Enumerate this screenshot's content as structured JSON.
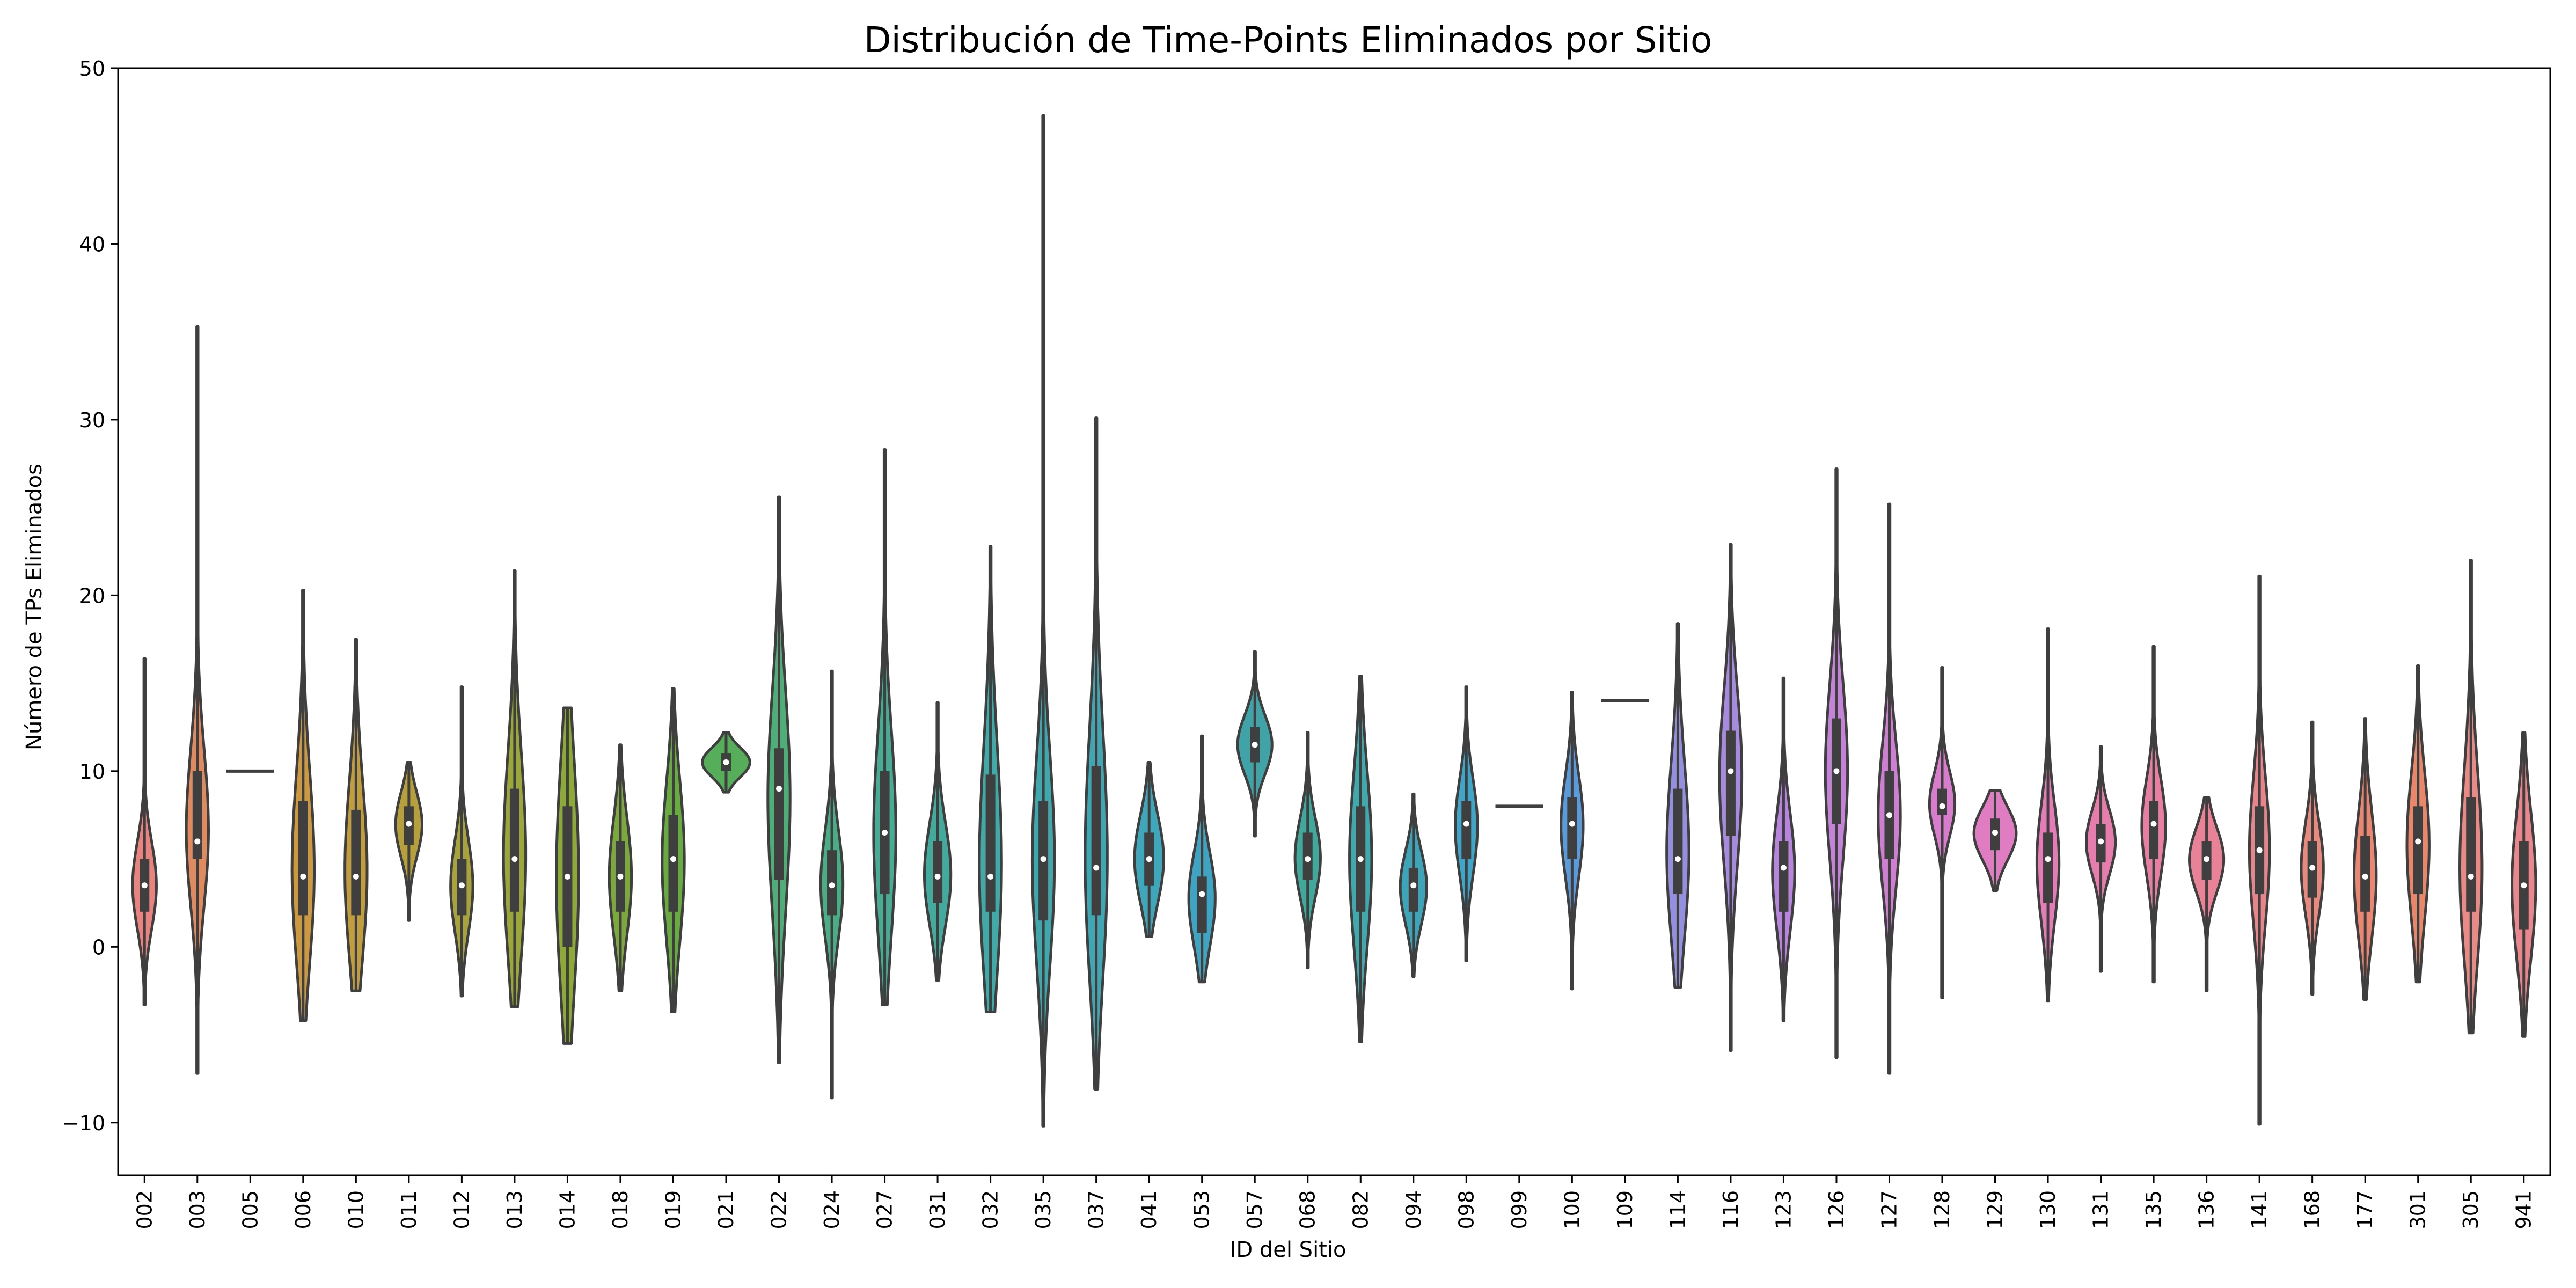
{
  "chart_data": {
    "type": "violin",
    "title": "Distribución de Time-Points Eliminados por Sitio",
    "xlabel": "ID del Sitio",
    "ylabel": "Número de TPs Eliminados",
    "ylim": [
      -13,
      50
    ],
    "yticks": [
      -10,
      0,
      10,
      20,
      30,
      40,
      50
    ],
    "ytick_labels": [
      "−10",
      "0",
      "10",
      "20",
      "30",
      "40",
      "50"
    ],
    "grid": false,
    "legend": "none",
    "categories": [
      "002",
      "003",
      "005",
      "006",
      "010",
      "011",
      "012",
      "013",
      "014",
      "018",
      "019",
      "021",
      "022",
      "024",
      "027",
      "031",
      "032",
      "035",
      "037",
      "041",
      "053",
      "057",
      "068",
      "082",
      "094",
      "098",
      "099",
      "100",
      "109",
      "114",
      "116",
      "123",
      "126",
      "127",
      "128",
      "129",
      "130",
      "131",
      "135",
      "136",
      "141",
      "168",
      "177",
      "301",
      "305",
      "941"
    ],
    "colors": [
      "#e8837f",
      "#e08a5f",
      "#d79248",
      "#cc9940",
      "#c19d3e",
      "#b5a03d",
      "#a8a33c",
      "#9ba63b",
      "#8ca93a",
      "#7ba93b",
      "#68ab41",
      "#56ad5a",
      "#4eae77",
      "#4aad87",
      "#47ac93",
      "#44aa9d",
      "#42a9a6",
      "#40a8ad",
      "#3fa6b3",
      "#3fa7b9",
      "#3fa3c2",
      "#40a3a8",
      "#41a89b",
      "#40a9ae",
      "#3ea5b9",
      "#41a5c7",
      "#45a1d2",
      "#5b9bd9",
      "#7a95dd",
      "#9490df",
      "#a78bdf",
      "#b786dc",
      "#c482d8",
      "#cf7fd2",
      "#d87dcb",
      "#df7cc2",
      "#e47cb8",
      "#e67dad",
      "#e87fa2",
      "#e88296",
      "#e8858a",
      "#e98a7e",
      "#e98773",
      "#e8876a",
      "#e98a86",
      "#e8878d"
    ],
    "series": [
      {
        "name": "",
        "min": [
          -3.3,
          -7.2,
          10,
          -4.2,
          -2.5,
          1.5,
          -2.8,
          -3.4,
          -5.5,
          -2.5,
          -3.7,
          8.8,
          -6.6,
          -8.6,
          -3.3,
          -1.9,
          -3.7,
          -10.2,
          -8.1,
          0.6,
          -2,
          6.3,
          -1.2,
          -5.4,
          -1.7,
          -0.8,
          8,
          -2.4,
          14,
          -2.3,
          -5.9,
          -4.2,
          -6.3,
          -7.2,
          -2.9,
          3.2,
          -3.1,
          -1.4,
          -2,
          -2.5,
          -10.1,
          -2.7,
          -3,
          -2,
          -4.9,
          -5.1
        ],
        "max": [
          16.4,
          35.3,
          10,
          20.3,
          17.5,
          10.5,
          14.8,
          21.4,
          13.6,
          11.5,
          14.7,
          12.2,
          25.6,
          15.7,
          28.3,
          13.9,
          22.8,
          47.3,
          30.1,
          10.5,
          12,
          16.8,
          12.2,
          15.4,
          8.7,
          14.8,
          8,
          14.5,
          14,
          18.4,
          22.9,
          15.3,
          27.2,
          25.2,
          15.9,
          8.9,
          18.1,
          11.4,
          17.1,
          8.5,
          21.1,
          12.8,
          13,
          16,
          22,
          12.2
        ],
        "q1": [
          2,
          5,
          10,
          1.8,
          1.8,
          5.8,
          1.8,
          2,
          0,
          2,
          2,
          10,
          3.8,
          1.8,
          3,
          2.5,
          2,
          1.5,
          1.8,
          3.5,
          0.8,
          10.5,
          3.8,
          2,
          2,
          5,
          8,
          5,
          14,
          3,
          6.3,
          2,
          7,
          5,
          7.5,
          5.5,
          2.5,
          4.8,
          5,
          3.8,
          3,
          2.8,
          2,
          3,
          2,
          1
        ],
        "q3": [
          5,
          10,
          10,
          8.3,
          7.8,
          8,
          5,
          9,
          8,
          6,
          7.5,
          11,
          11.3,
          5.5,
          10,
          6,
          9.8,
          8.3,
          10.3,
          6.5,
          4,
          12.5,
          6.5,
          8,
          4.5,
          8.3,
          8,
          8.5,
          14,
          9,
          12.3,
          6,
          13,
          10,
          9,
          7.3,
          6.5,
          7,
          8.3,
          6,
          8,
          6,
          6.3,
          8,
          8.5,
          6
        ],
        "median": [
          3.5,
          6,
          10,
          4,
          4,
          7,
          3.5,
          5,
          4,
          4,
          5,
          10.5,
          9,
          3.5,
          6.5,
          4,
          4,
          5,
          4.5,
          5,
          3,
          11.5,
          5,
          5,
          3.5,
          7,
          8,
          7,
          14,
          5,
          10,
          4.5,
          10,
          7.5,
          8,
          6.5,
          5,
          6,
          7,
          5,
          5.5,
          4.5,
          4,
          6,
          4,
          3.5
        ],
        "width_scale": [
          0.45,
          0.42,
          0,
          0.42,
          0.42,
          0.5,
          0.42,
          0.42,
          0.42,
          0.42,
          0.42,
          0.9,
          0.42,
          0.42,
          0.42,
          0.5,
          0.42,
          0.42,
          0.42,
          0.55,
          0.5,
          0.65,
          0.48,
          0.42,
          0.5,
          0.42,
          0,
          0.42,
          0,
          0.42,
          0.42,
          0.42,
          0.42,
          0.42,
          0.48,
          0.8,
          0.42,
          0.55,
          0.45,
          0.65,
          0.38,
          0.42,
          0.42,
          0.42,
          0.42,
          0.45
        ]
      }
    ]
  }
}
